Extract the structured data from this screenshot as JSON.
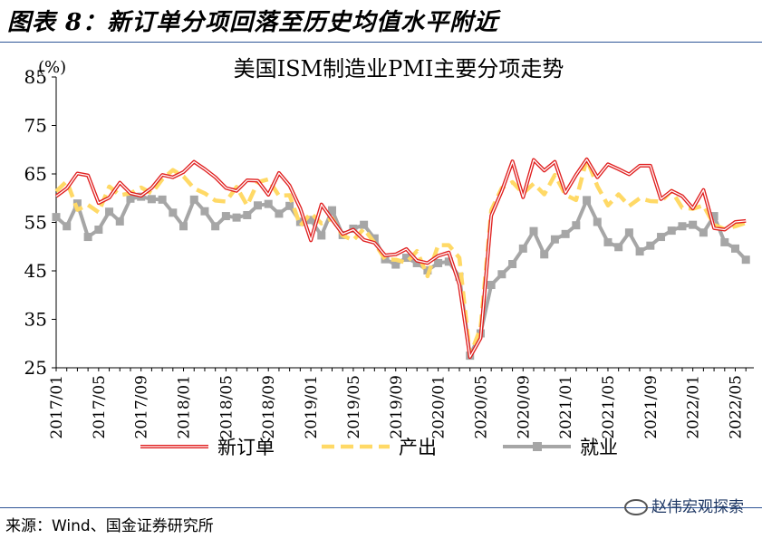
{
  "figure_title": "图表 8：新订单分项回落至历史均值水平附近",
  "source": "来源：Wind、国金证券研究所",
  "watermark": "赵伟宏观探索",
  "chart_data": {
    "type": "line",
    "title": "美国ISM制造业PMI主要分项走势",
    "ylabel": "(%)",
    "xlabel": "",
    "ylim": [
      25,
      85
    ],
    "yticks": [
      25,
      35,
      45,
      55,
      65,
      75,
      85
    ],
    "grid": false,
    "legend_position": "bottom",
    "x_tick_labels": [
      "2017/01",
      "2017/05",
      "2017/09",
      "2018/01",
      "2018/05",
      "2018/09",
      "2019/01",
      "2019/05",
      "2019/09",
      "2020/01",
      "2020/05",
      "2020/09",
      "2021/01",
      "2021/05",
      "2021/09",
      "2022/01",
      "2022/05"
    ],
    "x": [
      "2017/01",
      "2017/02",
      "2017/03",
      "2017/04",
      "2017/05",
      "2017/06",
      "2017/07",
      "2017/08",
      "2017/09",
      "2017/10",
      "2017/11",
      "2017/12",
      "2018/01",
      "2018/02",
      "2018/03",
      "2018/04",
      "2018/05",
      "2018/06",
      "2018/07",
      "2018/08",
      "2018/09",
      "2018/10",
      "2018/11",
      "2018/12",
      "2019/01",
      "2019/02",
      "2019/03",
      "2019/04",
      "2019/05",
      "2019/06",
      "2019/07",
      "2019/08",
      "2019/09",
      "2019/10",
      "2019/11",
      "2019/12",
      "2020/01",
      "2020/02",
      "2020/03",
      "2020/04",
      "2020/05",
      "2020/06",
      "2020/07",
      "2020/08",
      "2020/09",
      "2020/10",
      "2020/11",
      "2020/12",
      "2021/01",
      "2021/02",
      "2021/03",
      "2021/04",
      "2021/05",
      "2021/06",
      "2021/07",
      "2021/08",
      "2021/09",
      "2021/10",
      "2021/11",
      "2021/12",
      "2022/01",
      "2022/02",
      "2022/03",
      "2022/04",
      "2022/05",
      "2022/06"
    ],
    "series": [
      {
        "name": "新订单",
        "color": "#e02020",
        "style": "double-line",
        "values": [
          60.4,
          62.0,
          65.1,
          64.7,
          59.0,
          60.1,
          63.2,
          61.0,
          60.5,
          62.1,
          64.8,
          64.3,
          65.4,
          67.5,
          66.0,
          64.3,
          62.1,
          61.5,
          63.7,
          63.6,
          60.7,
          65.2,
          62.6,
          57.9,
          51.3,
          58.7,
          55.6,
          52.6,
          53.5,
          51.4,
          50.8,
          48.2,
          48.4,
          49.5,
          47.1,
          46.6,
          48.1,
          48.8,
          42.2,
          27.2,
          31.1,
          56.4,
          61.5,
          67.6,
          60.2,
          67.9,
          65.7,
          67.5,
          61.1,
          64.8,
          68.0,
          64.3,
          67.0,
          66.0,
          64.9,
          66.7,
          66.7,
          59.8,
          61.5,
          60.4,
          57.9,
          61.7,
          53.8,
          53.5,
          55.1,
          55.3
        ]
      },
      {
        "name": "产出",
        "color": "#ffd966",
        "style": "dashed",
        "values": [
          61.4,
          63.5,
          57.6,
          58.6,
          57.1,
          62.4,
          60.6,
          61.0,
          62.2,
          61.0,
          63.9,
          65.8,
          64.5,
          62.0,
          61.0,
          59.5,
          59.3,
          62.3,
          58.5,
          63.3,
          63.9,
          60.5,
          60.6,
          54.3,
          56.9,
          54.8,
          55.8,
          52.3,
          51.3,
          53.7,
          50.8,
          47.4,
          47.3,
          46.7,
          49.1,
          43.9,
          50.3,
          50.3,
          47.7,
          27.5,
          33.2,
          57.5,
          62.1,
          63.3,
          61.0,
          63.0,
          60.8,
          64.8,
          60.7,
          59.6,
          68.1,
          62.5,
          58.5,
          60.8,
          58.4,
          60.0,
          59.4,
          59.3,
          61.5,
          58.0,
          57.8,
          58.5,
          54.5,
          53.6,
          54.2,
          54.9
        ]
      },
      {
        "name": "就业",
        "color": "#a6a6a6",
        "style": "square-markers",
        "values": [
          56.1,
          54.2,
          58.9,
          52.0,
          53.5,
          57.2,
          55.2,
          59.9,
          60.3,
          59.8,
          59.7,
          57.0,
          54.2,
          59.7,
          57.3,
          54.2,
          56.3,
          56.0,
          56.5,
          58.5,
          58.8,
          56.8,
          58.4,
          55.1,
          55.5,
          52.3,
          57.5,
          52.4,
          53.7,
          54.5,
          51.7,
          47.4,
          46.3,
          47.7,
          46.6,
          45.1,
          46.6,
          46.9,
          43.8,
          27.5,
          32.1,
          42.1,
          44.3,
          46.4,
          49.6,
          53.2,
          48.4,
          51.5,
          52.6,
          54.4,
          59.6,
          55.1,
          50.9,
          49.9,
          52.9,
          49.0,
          50.2,
          52.0,
          53.3,
          54.2,
          54.5,
          52.9,
          56.3,
          50.9,
          49.6,
          47.3
        ]
      }
    ]
  }
}
